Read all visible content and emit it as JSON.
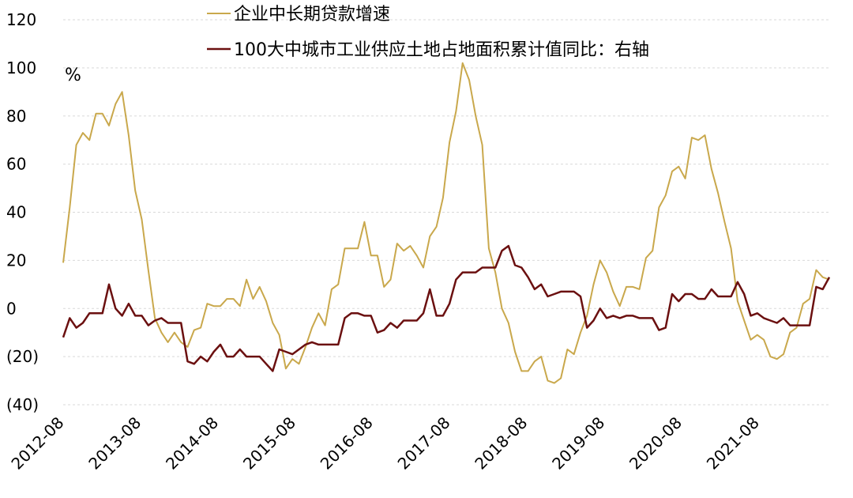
{
  "chart_data": {
    "type": "line",
    "unit_label": "%",
    "ylim": [
      -40,
      120
    ],
    "yticks": [
      {
        "value": 120,
        "label": "120",
        "color": "#000000"
      },
      {
        "value": 100,
        "label": "100",
        "color": "#000000"
      },
      {
        "value": 80,
        "label": "80",
        "color": "#000000"
      },
      {
        "value": 60,
        "label": "60",
        "color": "#000000"
      },
      {
        "value": 40,
        "label": "40",
        "color": "#000000"
      },
      {
        "value": 20,
        "label": "20",
        "color": "#000000"
      },
      {
        "value": 0,
        "label": "0",
        "color": "#000000"
      },
      {
        "value": -20,
        "label": "(20)",
        "color": "#e00000"
      },
      {
        "value": -40,
        "label": "(40)",
        "color": "#e00000"
      }
    ],
    "xticks": [
      "2012-08",
      "2013-08",
      "2014-08",
      "2015-08",
      "2016-08",
      "2017-08",
      "2018-08",
      "2019-08",
      "2020-08",
      "2021-08"
    ],
    "x_start": "2012-08",
    "x_end": "2022-07",
    "grid": "horizontal dashed",
    "legend_position": "top",
    "series": [
      {
        "name": "企业中长期贷款增速",
        "color": "#c9a84c",
        "values": [
          19,
          42,
          68,
          73,
          70,
          81,
          81,
          76,
          85,
          90,
          72,
          49,
          37,
          16,
          -4,
          -10,
          -14,
          -10,
          -14,
          -16,
          -9,
          -8,
          2,
          1,
          1,
          4,
          4,
          1,
          12,
          4,
          9,
          3,
          -6,
          -11,
          -25,
          -21,
          -23,
          -16,
          -8,
          -2,
          -7,
          8,
          10,
          25,
          25,
          25,
          36,
          22,
          22,
          9,
          12,
          27,
          24,
          26,
          22,
          17,
          30,
          34,
          46,
          69,
          82,
          102,
          95,
          80,
          68,
          25,
          15,
          0,
          -6,
          -18,
          -26,
          -26,
          -22,
          -20,
          -30,
          -31,
          -29,
          -17,
          -19,
          -10,
          -3,
          10,
          20,
          15,
          7,
          1,
          9,
          9,
          8,
          21,
          24,
          42,
          47,
          57,
          59,
          54,
          71,
          70,
          72,
          58,
          48,
          36,
          25,
          3,
          -5,
          -13,
          -11,
          -13,
          -20,
          -21,
          -19,
          -10,
          -8,
          2,
          4,
          16,
          13,
          12
        ]
      },
      {
        "name": "100大中城市工业供应土地占地面积累计值同比：右轴",
        "color": "#6b1010",
        "values": [
          -12,
          -4,
          -8,
          -6,
          -2,
          -2,
          -2,
          10,
          0,
          -3,
          2,
          -3,
          -3,
          -7,
          -5,
          -4,
          -6,
          -6,
          -6,
          -22,
          -23,
          -20,
          -22,
          -18,
          -15,
          -20,
          -20,
          -17,
          -20,
          -20,
          -20,
          -23,
          -26,
          -17,
          -18,
          -19,
          -17,
          -15,
          -14,
          -15,
          -15,
          -15,
          -15,
          -4,
          -2,
          -2,
          -3,
          -3,
          -10,
          -9,
          -6,
          -8,
          -5,
          -5,
          -5,
          -2,
          8,
          -3,
          -3,
          2,
          12,
          15,
          15,
          15,
          17,
          17,
          17,
          24,
          26,
          18,
          17,
          13,
          8,
          10,
          5,
          6,
          7,
          7,
          7,
          5,
          -8,
          -5,
          0,
          -4,
          -3,
          -4,
          -3,
          -3,
          -4,
          -4,
          -4,
          -9,
          -8,
          6,
          3,
          6,
          6,
          4,
          4,
          8,
          5,
          5,
          5,
          11,
          6,
          -3,
          -2,
          -4,
          -5,
          -6,
          -4,
          -7,
          -7,
          -7,
          -7,
          9,
          8,
          13
        ]
      }
    ]
  }
}
